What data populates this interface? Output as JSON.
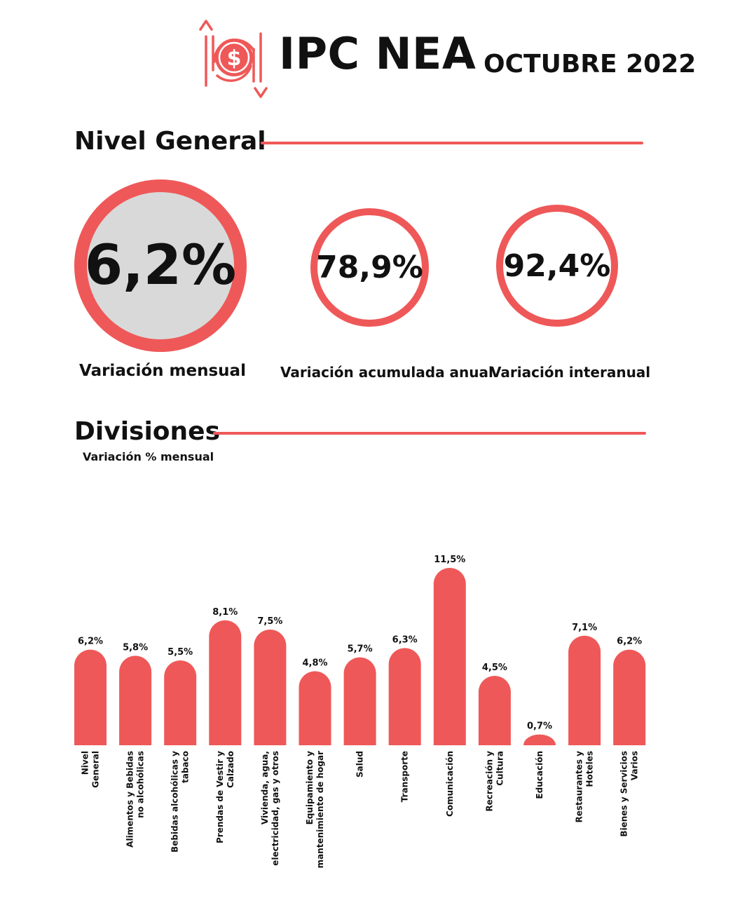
{
  "header": {
    "title": "IPC NEA",
    "period": "OCTUBRE 2022",
    "logo_icon": "dollar-price-arrows-icon"
  },
  "colors": {
    "accent": "#ef5858",
    "circle_fill": "#d9d9d9",
    "text": "#111111"
  },
  "nivel_general": {
    "title": "Nivel General",
    "kpis": {
      "monthly": {
        "value": "6,2%",
        "label": "Variación mensual"
      },
      "annual": {
        "value": "78,9%",
        "label": "Variación acumulada anual"
      },
      "yoy": {
        "value": "92,4%",
        "label": "Variación interanual"
      }
    }
  },
  "divisiones": {
    "title": "Divisiones",
    "subtitle": "Variación % mensual"
  },
  "chart_data": {
    "type": "bar",
    "title": "Divisiones",
    "subtitle": "Variación % mensual",
    "categories": [
      [
        "Nivel",
        "General"
      ],
      [
        "Alimentos y Bebidas",
        "no alcohólicas"
      ],
      [
        "Bebidas alcohólicas y",
        "tabaco"
      ],
      [
        "Prendas de Vestir y",
        "Calzado"
      ],
      [
        "Vivienda, agua,",
        "electricidad, gas y otros"
      ],
      [
        "Equipamiento y",
        "mantenimiento de hogar"
      ],
      [
        "Salud"
      ],
      [
        "Transporte"
      ],
      [
        "Comunicación"
      ],
      [
        "Recreación y",
        "Cultura"
      ],
      [
        "Educación"
      ],
      [
        "Restaurantes y",
        "Hoteles"
      ],
      [
        "Bienes y Servicios",
        "Varios"
      ]
    ],
    "values": [
      6.2,
      5.8,
      5.5,
      8.1,
      7.5,
      4.8,
      5.7,
      6.3,
      11.5,
      4.5,
      0.7,
      7.1,
      6.2
    ],
    "data_labels": [
      "6,2%",
      "5,8%",
      "5,5%",
      "8,1%",
      "7,5%",
      "4,8%",
      "5,7%",
      "6,3%",
      "11,5%",
      "4,5%",
      "0,7%",
      "7,1%",
      "6,2%"
    ],
    "xlabel": "",
    "ylabel": "",
    "ylim": [
      0,
      11.5
    ],
    "grid": false,
    "legend": "none",
    "bar_color": "#ef5858"
  }
}
